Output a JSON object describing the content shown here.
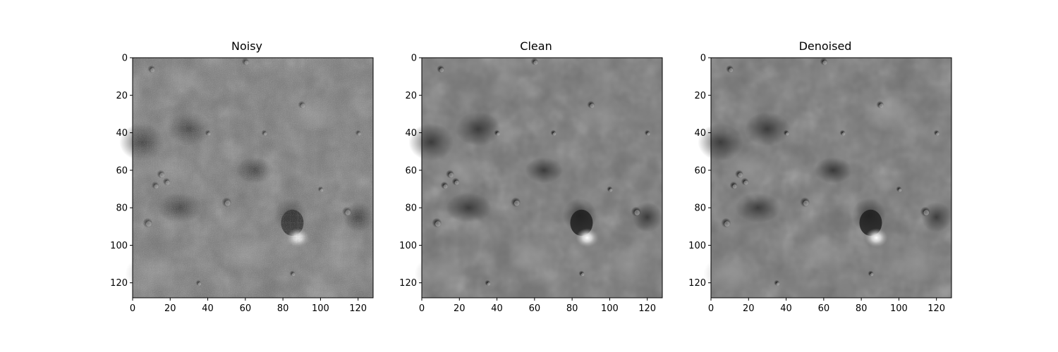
{
  "panels": [
    {
      "title": "Noisy"
    },
    {
      "title": "Clean"
    },
    {
      "title": "Denoised"
    }
  ],
  "axes": {
    "x_ticks": [
      "0",
      "20",
      "40",
      "60",
      "80",
      "100",
      "120"
    ],
    "y_ticks": [
      "0",
      "20",
      "40",
      "60",
      "80",
      "100",
      "120"
    ],
    "x_range": [
      0,
      128
    ],
    "y_range": [
      0,
      128
    ]
  },
  "colors": {
    "axis": "#000000",
    "background": "#ffffff"
  },
  "image_style": "grayscale lunar surface with craters"
}
